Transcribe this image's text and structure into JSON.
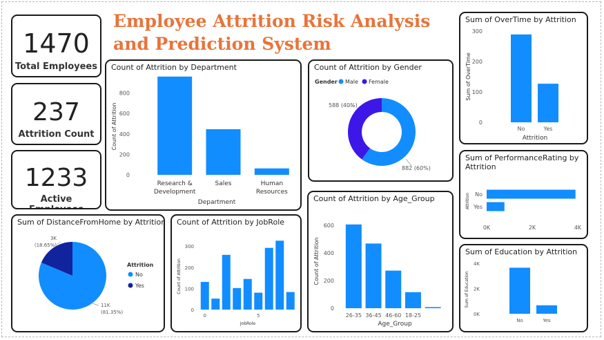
{
  "title": "Employee Attrition Risk Analysis and Prediction System",
  "kpis": [
    {
      "value": "1470",
      "label": "Total Employees"
    },
    {
      "value": "237",
      "label": "Attrition Count"
    },
    {
      "value": "1233",
      "label": "Active Employees"
    }
  ],
  "colors": {
    "blue": "#118DFF",
    "dark_navy": "#12239E",
    "purple": "#3D17E8",
    "title_orange": "#E8743B"
  },
  "chart_data": [
    {
      "id": "dept",
      "type": "bar",
      "title": "Count of Attrition by Department",
      "categories": [
        "Research & Development",
        "Sales",
        "Human Resources"
      ],
      "category_lines": [
        [
          "Research &",
          "Development"
        ],
        [
          "Sales"
        ],
        [
          "Human",
          "Resources"
        ]
      ],
      "values": [
        961,
        446,
        63
      ],
      "xlabel": "Department",
      "ylabel": "Count of Attrition",
      "yticks": [
        0,
        200,
        400,
        600,
        800
      ],
      "ylim": [
        0,
        980
      ]
    },
    {
      "id": "gender",
      "type": "pie",
      "donut": true,
      "title": "Count of Attrition by Gender",
      "legend_title": "Gender",
      "labels": [
        "Male",
        "Female"
      ],
      "values": [
        882,
        588
      ],
      "data_labels": [
        "882 (60%)",
        "588 (40%)"
      ]
    },
    {
      "id": "overtime",
      "type": "bar",
      "title": "Sum of OverTime by Attrition",
      "categories": [
        "No",
        "Yes"
      ],
      "values": [
        289,
        127
      ],
      "xlabel": "Attrition",
      "ylabel": "Sum of OverTime",
      "yticks": [
        0,
        100,
        200,
        300
      ],
      "ylim": [
        0,
        300
      ]
    },
    {
      "id": "perf",
      "type": "bar",
      "orientation": "horizontal",
      "title": "Sum of PerformanceRating by Attrition",
      "categories": [
        "No",
        "Yes"
      ],
      "values": [
        3900,
        780
      ],
      "ylabel": "Attrition",
      "xticks": [
        "0K",
        "2K",
        "4K"
      ],
      "xlim": [
        0,
        4000
      ]
    },
    {
      "id": "distance",
      "type": "pie",
      "title": "Sum of DistanceFromHome by Attrition",
      "legend_title": "Attrition",
      "labels": [
        "No",
        "Yes"
      ],
      "values": [
        81.35,
        18.65
      ],
      "data_labels": [
        [
          "11K",
          "(81.35%)"
        ],
        [
          "3K",
          "(18.65%)"
        ]
      ]
    },
    {
      "id": "jobrole",
      "type": "bar",
      "title": "Count of Attrition by JobRole",
      "values": [
        131,
        52,
        259,
        102,
        145,
        80,
        292,
        326,
        83
      ],
      "xlabel": "JobRole",
      "ylabel": "Count of Attrition",
      "yticks": [
        0,
        100,
        200,
        300
      ],
      "ylim": [
        0,
        340
      ],
      "xticks": [
        {
          "pos": 0,
          "label": "0"
        },
        {
          "pos": 5,
          "label": "5"
        }
      ]
    },
    {
      "id": "age",
      "type": "bar",
      "title": "Count of Attrition by Age_Group",
      "categories": [
        "26-35",
        "36-45",
        "46-60",
        "18-25",
        ""
      ],
      "values": [
        606,
        468,
        272,
        116,
        8
      ],
      "xlabel": "Age_Group",
      "ylabel": "Count of Attrition",
      "yticks": [
        0,
        200,
        400,
        600
      ],
      "ylim": [
        0,
        640
      ]
    },
    {
      "id": "education",
      "type": "bar",
      "title": "Sum of Education by Attrition",
      "categories": [
        "No",
        "Yes"
      ],
      "values": [
        3650,
        670
      ],
      "ylabel": "Sum of Education",
      "yticks": [
        "0K",
        "2K",
        "4K"
      ],
      "ylim": [
        0,
        4000
      ]
    }
  ]
}
